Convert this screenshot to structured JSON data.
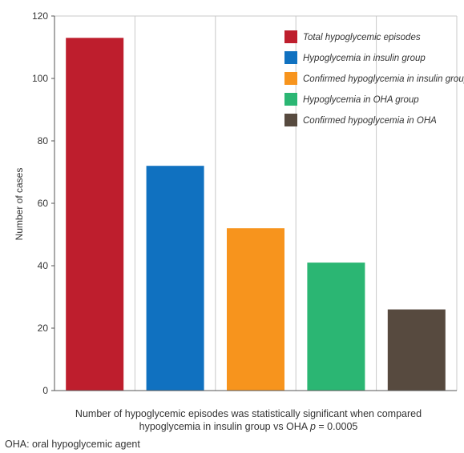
{
  "chart_data": {
    "type": "bar",
    "categories": [
      "Total hypoglycemic episodes",
      "Hypoglycemia in insulin group",
      "Confirmed hypoglycemia in insulin group",
      "Hypoglycemia in OHA group",
      "Confirmed hypoglycemia in OHA"
    ],
    "values": [
      113,
      72,
      52,
      41,
      26
    ],
    "colors": [
      "#be1e2d",
      "#1071c0",
      "#f7941d",
      "#2bb673",
      "#574a3f"
    ],
    "ylabel": "Number of cases",
    "ylim": [
      0,
      120
    ],
    "yticks": [
      "0",
      "20",
      "40",
      "60",
      "80",
      "100",
      "120"
    ],
    "grid": "vertical",
    "legend_position": "top-right"
  },
  "caption": {
    "line1": "Number of hypoglycemic episodes was statistically significant when compared",
    "line2_prefix": "hypoglycemia in insulin group vs OHA ",
    "p_symbol": "p",
    "line2_suffix": " = 0.0005"
  },
  "footnote": "OHA: oral hypoglycemic agent"
}
